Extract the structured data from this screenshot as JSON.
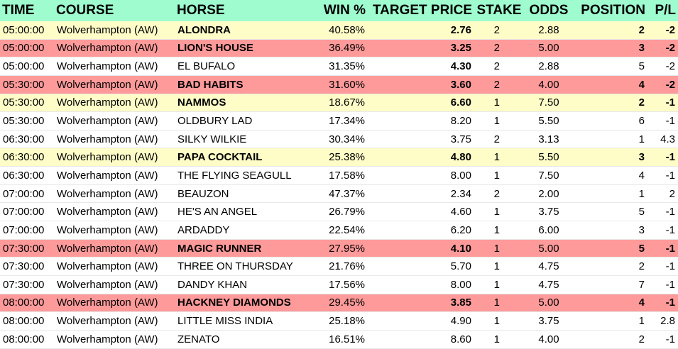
{
  "headers": [
    "TIME",
    "COURSE",
    "HORSE",
    "WIN %",
    "TARGET PRICE",
    "STAKE",
    "ODDS",
    "POSITION",
    "P/L"
  ],
  "colors": {
    "header_bg": "#9ffccf",
    "highlight_yellow": "#fefdc8",
    "highlight_red": "#fe9a9a"
  },
  "rows": [
    {
      "time": "05:00:00",
      "course": "Wolverhampton (AW)",
      "horse": "ALONDRA",
      "win": "40.58%",
      "price": "2.76",
      "stake": "2",
      "odds": "2.88",
      "position": "2",
      "pl": "-2",
      "highlight": "yellow"
    },
    {
      "time": "05:00:00",
      "course": "Wolverhampton (AW)",
      "horse": "LION'S HOUSE",
      "win": "36.49%",
      "price": "3.25",
      "stake": "2",
      "odds": "5.00",
      "position": "3",
      "pl": "-2",
      "highlight": "red"
    },
    {
      "time": "05:00:00",
      "course": "Wolverhampton (AW)",
      "horse": "EL BUFALO",
      "win": "31.35%",
      "price": "4.30",
      "stake": "2",
      "odds": "2.88",
      "position": "5",
      "pl": "-2",
      "highlight": "none",
      "bold_price": true
    },
    {
      "time": "05:30:00",
      "course": "Wolverhampton (AW)",
      "horse": "BAD HABITS",
      "win": "31.60%",
      "price": "3.60",
      "stake": "2",
      "odds": "4.00",
      "position": "4",
      "pl": "-2",
      "highlight": "red"
    },
    {
      "time": "05:30:00",
      "course": "Wolverhampton (AW)",
      "horse": "NAMMOS",
      "win": "18.67%",
      "price": "6.60",
      "stake": "1",
      "odds": "7.50",
      "position": "2",
      "pl": "-1",
      "highlight": "yellow"
    },
    {
      "time": "05:30:00",
      "course": "Wolverhampton (AW)",
      "horse": "OLDBURY LAD",
      "win": "17.34%",
      "price": "8.20",
      "stake": "1",
      "odds": "5.50",
      "position": "6",
      "pl": "-1",
      "highlight": "none"
    },
    {
      "time": "06:30:00",
      "course": "Wolverhampton (AW)",
      "horse": "SILKY WILKIE",
      "win": "30.34%",
      "price": "3.75",
      "stake": "2",
      "odds": "3.13",
      "position": "1",
      "pl": "4.3",
      "highlight": "none"
    },
    {
      "time": "06:30:00",
      "course": "Wolverhampton (AW)",
      "horse": "PAPA COCKTAIL",
      "win": "25.38%",
      "price": "4.80",
      "stake": "1",
      "odds": "5.50",
      "position": "3",
      "pl": "-1",
      "highlight": "yellow"
    },
    {
      "time": "06:30:00",
      "course": "Wolverhampton (AW)",
      "horse": "THE FLYING SEAGULL",
      "win": "17.58%",
      "price": "8.00",
      "stake": "1",
      "odds": "7.50",
      "position": "4",
      "pl": "-1",
      "highlight": "none"
    },
    {
      "time": "07:00:00",
      "course": "Wolverhampton (AW)",
      "horse": "BEAUZON",
      "win": "47.37%",
      "price": "2.34",
      "stake": "2",
      "odds": "2.00",
      "position": "1",
      "pl": "2",
      "highlight": "none"
    },
    {
      "time": "07:00:00",
      "course": "Wolverhampton (AW)",
      "horse": "HE'S AN ANGEL",
      "win": "26.79%",
      "price": "4.60",
      "stake": "1",
      "odds": "3.75",
      "position": "5",
      "pl": "-1",
      "highlight": "none"
    },
    {
      "time": "07:00:00",
      "course": "Wolverhampton (AW)",
      "horse": "ARDADDY",
      "win": "22.54%",
      "price": "6.20",
      "stake": "1",
      "odds": "6.00",
      "position": "3",
      "pl": "-1",
      "highlight": "none"
    },
    {
      "time": "07:30:00",
      "course": "Wolverhampton (AW)",
      "horse": "MAGIC RUNNER",
      "win": "27.95%",
      "price": "4.10",
      "stake": "1",
      "odds": "5.00",
      "position": "5",
      "pl": "-1",
      "highlight": "red"
    },
    {
      "time": "07:30:00",
      "course": "Wolverhampton (AW)",
      "horse": "THREE ON THURSDAY",
      "win": "21.76%",
      "price": "5.70",
      "stake": "1",
      "odds": "4.75",
      "position": "2",
      "pl": "-1",
      "highlight": "none"
    },
    {
      "time": "07:30:00",
      "course": "Wolverhampton (AW)",
      "horse": "DANDY KHAN",
      "win": "17.56%",
      "price": "8.00",
      "stake": "1",
      "odds": "4.75",
      "position": "7",
      "pl": "-1",
      "highlight": "none"
    },
    {
      "time": "08:00:00",
      "course": "Wolverhampton (AW)",
      "horse": "HACKNEY DIAMONDS",
      "win": "29.45%",
      "price": "3.85",
      "stake": "1",
      "odds": "5.00",
      "position": "4",
      "pl": "-1",
      "highlight": "red"
    },
    {
      "time": "08:00:00",
      "course": "Wolverhampton (AW)",
      "horse": "LITTLE MISS INDIA",
      "win": "25.18%",
      "price": "4.90",
      "stake": "1",
      "odds": "3.75",
      "position": "1",
      "pl": "2.8",
      "highlight": "none"
    },
    {
      "time": "08:00:00",
      "course": "Wolverhampton (AW)",
      "horse": "ZENATO",
      "win": "16.51%",
      "price": "8.60",
      "stake": "1",
      "odds": "4.00",
      "position": "2",
      "pl": "-1",
      "highlight": "none"
    }
  ]
}
